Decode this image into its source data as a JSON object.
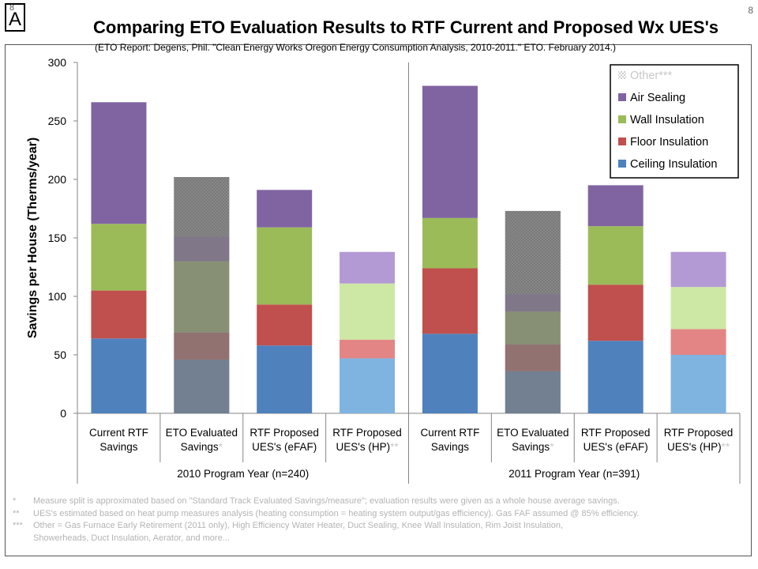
{
  "badge": {
    "small": "8",
    "letter": "A"
  },
  "page_number": "8",
  "chart_data": {
    "type": "bar",
    "stacked": true,
    "title": "Comparing ETO Evaluation Results to RTF Current and Proposed Wx UES's",
    "subtitle": "(ETO Report: Degens, Phil. \"Clean Energy Works Oregon Energy Consumption Analysis, 2010-2011.\" ETO. February 2014.)",
    "ylabel": "Savings per House (Therms/year)",
    "ylim": [
      0,
      300
    ],
    "yticks": [
      0,
      50,
      100,
      150,
      200,
      250,
      300
    ],
    "grid": false,
    "legend_position": "top-right",
    "categories": [
      {
        "label": [
          "Current RTF",
          "Savings"
        ],
        "marker": "",
        "group": "2010",
        "style": "solid"
      },
      {
        "label": [
          "ETO Evaluated",
          "Savings"
        ],
        "marker": "*",
        "group": "2010",
        "style": "hatched"
      },
      {
        "label": [
          "RTF Proposed",
          "UES's (eFAF)"
        ],
        "marker": "",
        "group": "2010",
        "style": "solid"
      },
      {
        "label": [
          "RTF Proposed",
          "UES's (HP)"
        ],
        "marker": "**",
        "group": "2010",
        "style": "light"
      },
      {
        "label": [
          "Current RTF",
          "Savings"
        ],
        "marker": "",
        "group": "2011",
        "style": "solid"
      },
      {
        "label": [
          "ETO Evaluated",
          "Savings"
        ],
        "marker": "*",
        "group": "2011",
        "style": "hatched"
      },
      {
        "label": [
          "RTF Proposed",
          "UES's (eFAF)"
        ],
        "marker": "",
        "group": "2011",
        "style": "solid"
      },
      {
        "label": [
          "RTF Proposed",
          "UES's (HP)"
        ],
        "marker": "**",
        "group": "2011",
        "style": "light"
      }
    ],
    "groups": [
      {
        "id": "2010",
        "label": "2010 Program Year (n=240)"
      },
      {
        "id": "2011",
        "label": "2011 Program Year (n=391)"
      }
    ],
    "series": [
      {
        "name": "Ceiling Insulation",
        "color": "#4f81bd",
        "light_color": "#7fb3e0",
        "values": [
          64,
          46,
          58,
          47,
          68,
          36,
          62,
          50
        ]
      },
      {
        "name": "Floor Insulation",
        "color": "#c0504d",
        "light_color": "#e38585",
        "values": [
          41,
          23,
          35,
          16,
          56,
          23,
          48,
          22
        ]
      },
      {
        "name": "Wall Insulation",
        "color": "#9bbb59",
        "light_color": "#cce8a4",
        "values": [
          57,
          61,
          66,
          48,
          43,
          28,
          50,
          36
        ]
      },
      {
        "name": "Air Sealing",
        "color": "#8064a2",
        "light_color": "#b49ad4",
        "values": [
          104,
          21,
          32,
          27,
          113,
          15,
          35,
          30
        ]
      },
      {
        "name": "Other***",
        "color": "#8a8a8a",
        "light_color": "#d8d8d8",
        "legend_hatched": true,
        "values": [
          0,
          51,
          0,
          0,
          0,
          71,
          0,
          0
        ]
      }
    ],
    "legend_order": [
      "Other***",
      "Air Sealing",
      "Wall Insulation",
      "Floor Insulation",
      "Ceiling Insulation"
    ]
  },
  "notes": [
    {
      "marker": "*",
      "text": "Measure split is approximated based on \"Standard Track Evaluated Savings/measure\"; evaluation results were given as a whole house average savings."
    },
    {
      "marker": "**",
      "text": "UES's estimated based on heat pump measures analysis (heating consumption = heating system output/gas efficiency).  Gas FAF assumed @ 85% efficiency."
    },
    {
      "marker": "***",
      "text": "Other = Gas Furnace Early Retirement (2011 only), High Efficiency Water Heater, Duct Sealing, Knee Wall Insulation, Rim Joist Insulation,"
    },
    {
      "marker": "",
      "text": "Showerheads, Duct Insulation, Aerator, and more..."
    }
  ],
  "colors": {
    "hatch_overlay": "#808080",
    "axis": "#868686",
    "legend_border": "#000000",
    "notes_text": "#b4b4b4"
  }
}
